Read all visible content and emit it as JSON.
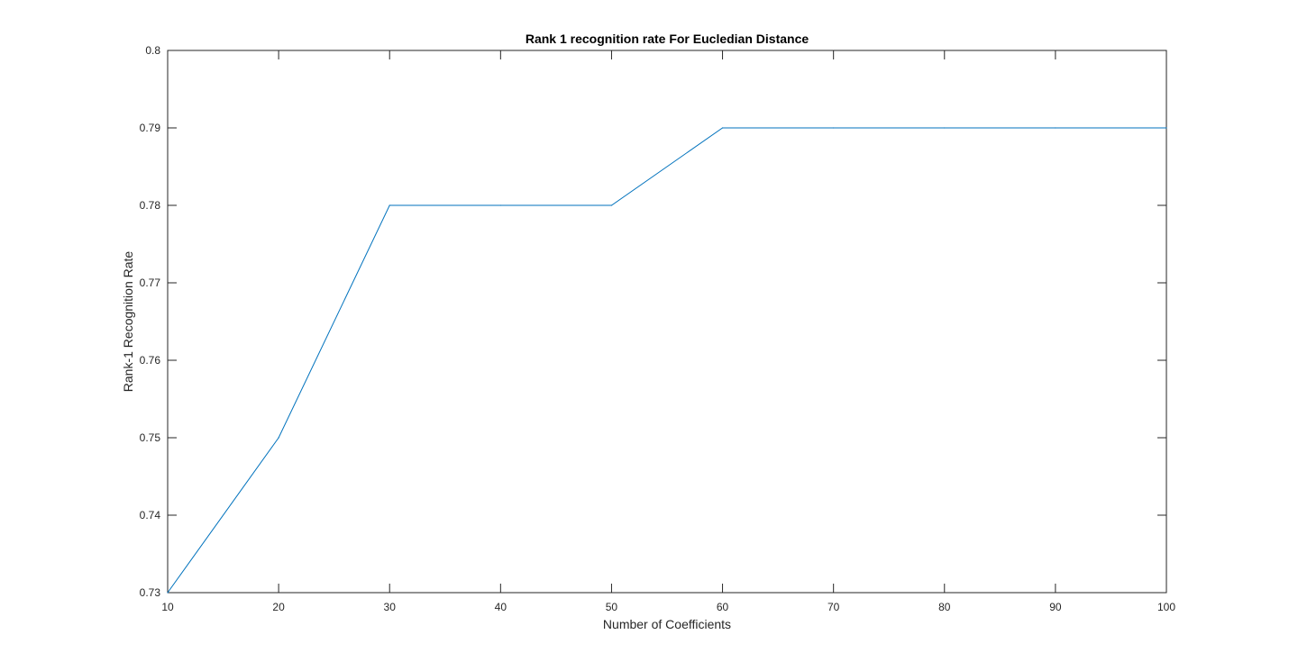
{
  "chart_data": {
    "type": "line",
    "title": "Rank 1 recognition rate For Eucledian Distance",
    "xlabel": "Number of Coefficients",
    "ylabel": "Rank-1 Recognition Rate",
    "xlim": [
      10,
      100
    ],
    "ylim": [
      0.73,
      0.8
    ],
    "xticks": [
      "10",
      "20",
      "30",
      "40",
      "50",
      "60",
      "70",
      "80",
      "90",
      "100"
    ],
    "yticks": [
      "0.73",
      "0.74",
      "0.75",
      "0.76",
      "0.77",
      "0.78",
      "0.79",
      "0.8"
    ],
    "grid": false,
    "series": [
      {
        "x": [
          10,
          20,
          30,
          40,
          50,
          60,
          70,
          80,
          90,
          100
        ],
        "values": [
          0.73,
          0.75,
          0.78,
          0.78,
          0.78,
          0.79,
          0.79,
          0.79,
          0.79,
          0.79
        ],
        "color": "#0072bd"
      }
    ]
  }
}
